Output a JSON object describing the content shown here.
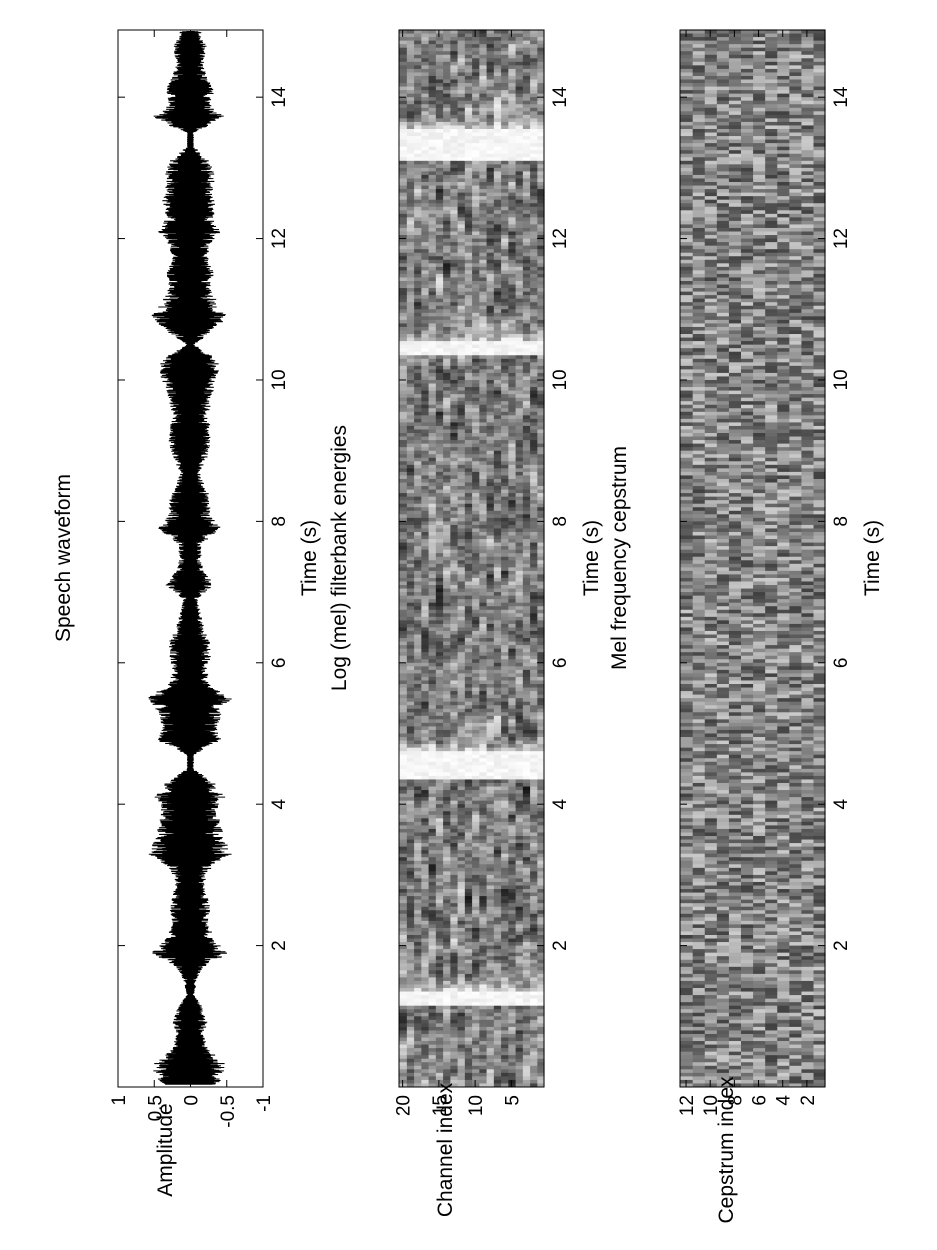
{
  "figure": {
    "orientation": "rotated-90-ccw",
    "background": "#ffffff",
    "ink": "#000000"
  },
  "chart_data": [
    {
      "type": "line",
      "title": "Speech waveform",
      "xlabel": "Time (s)",
      "ylabel": "Amplitude",
      "xlim": [
        0,
        14.95
      ],
      "ylim": [
        -1,
        1
      ],
      "xticks": [
        2,
        4,
        6,
        8,
        10,
        12,
        14
      ],
      "xtick_labels": [
        "2",
        "4",
        "6",
        "8",
        "10",
        "12",
        "14"
      ],
      "yticks": [
        -1,
        -0.5,
        0,
        0.5,
        1
      ],
      "ytick_labels": [
        "-1",
        "-0.5",
        "0",
        "0.5",
        "1"
      ],
      "grid": false,
      "envelope": {
        "x": [
          0.1,
          0.3,
          0.5,
          0.7,
          0.9,
          1.1,
          1.3,
          1.5,
          1.7,
          1.9,
          2.1,
          2.3,
          2.5,
          2.7,
          2.9,
          3.1,
          3.3,
          3.5,
          3.7,
          3.9,
          4.1,
          4.3,
          4.5,
          4.7,
          4.9,
          5.1,
          5.3,
          5.5,
          5.7,
          5.9,
          6.1,
          6.3,
          6.5,
          6.7,
          6.9,
          7.1,
          7.3,
          7.5,
          7.7,
          7.9,
          8.1,
          8.3,
          8.5,
          8.7,
          8.9,
          9.1,
          9.3,
          9.5,
          9.7,
          9.9,
          10.1,
          10.3,
          10.5,
          10.7,
          10.9,
          11.1,
          11.3,
          11.5,
          11.7,
          11.9,
          12.1,
          12.3,
          12.5,
          12.7,
          12.9,
          13.1,
          13.3,
          13.5,
          13.7,
          13.9,
          14.1,
          14.3,
          14.5,
          14.7,
          14.9
        ],
        "y": [
          0.45,
          0.55,
          0.3,
          0.2,
          0.25,
          0.2,
          0.05,
          0.1,
          0.2,
          0.55,
          0.35,
          0.25,
          0.3,
          0.25,
          0.2,
          0.3,
          0.6,
          0.5,
          0.45,
          0.4,
          0.5,
          0.35,
          0.05,
          0.05,
          0.45,
          0.4,
          0.45,
          0.6,
          0.3,
          0.25,
          0.3,
          0.3,
          0.2,
          0.15,
          0.1,
          0.35,
          0.2,
          0.15,
          0.2,
          0.45,
          0.3,
          0.3,
          0.2,
          0.15,
          0.25,
          0.3,
          0.3,
          0.25,
          0.3,
          0.35,
          0.45,
          0.4,
          0.05,
          0.35,
          0.55,
          0.4,
          0.3,
          0.35,
          0.25,
          0.3,
          0.45,
          0.35,
          0.4,
          0.35,
          0.35,
          0.3,
          0.05,
          0.05,
          0.55,
          0.3,
          0.35,
          0.25,
          0.2,
          0.25,
          0.15
        ]
      }
    },
    {
      "type": "heatmap",
      "title": "Log (mel) filterbank energies",
      "xlabel": "Time (s)",
      "ylabel": "Channel index",
      "xlim": [
        0,
        14.95
      ],
      "ylim": [
        0.5,
        20.5
      ],
      "xticks": [
        2,
        4,
        6,
        8,
        10,
        12,
        14
      ],
      "xtick_labels": [
        "2",
        "4",
        "6",
        "8",
        "10",
        "12",
        "14"
      ],
      "yticks": [
        5,
        10,
        15,
        20
      ],
      "ytick_labels": [
        "5",
        "10",
        "15",
        "20"
      ],
      "n_rows": 20,
      "colormap": "grayscale",
      "frame_step_s": 0.05
    },
    {
      "type": "heatmap",
      "title": "Mel frequency cepstrum",
      "xlabel": "Time (s)",
      "ylabel": "Cepstrum index",
      "xlim": [
        0,
        14.95
      ],
      "ylim": [
        0.5,
        12.5
      ],
      "xticks": [
        2,
        4,
        6,
        8,
        10,
        12,
        14
      ],
      "xtick_labels": [
        "2",
        "4",
        "6",
        "8",
        "10",
        "12",
        "14"
      ],
      "yticks": [
        2,
        4,
        6,
        8,
        10,
        12
      ],
      "ytick_labels": [
        "2",
        "4",
        "6",
        "8",
        "10",
        "12"
      ],
      "n_rows": 12,
      "colormap": "grayscale",
      "frame_step_s": 0.05
    }
  ]
}
